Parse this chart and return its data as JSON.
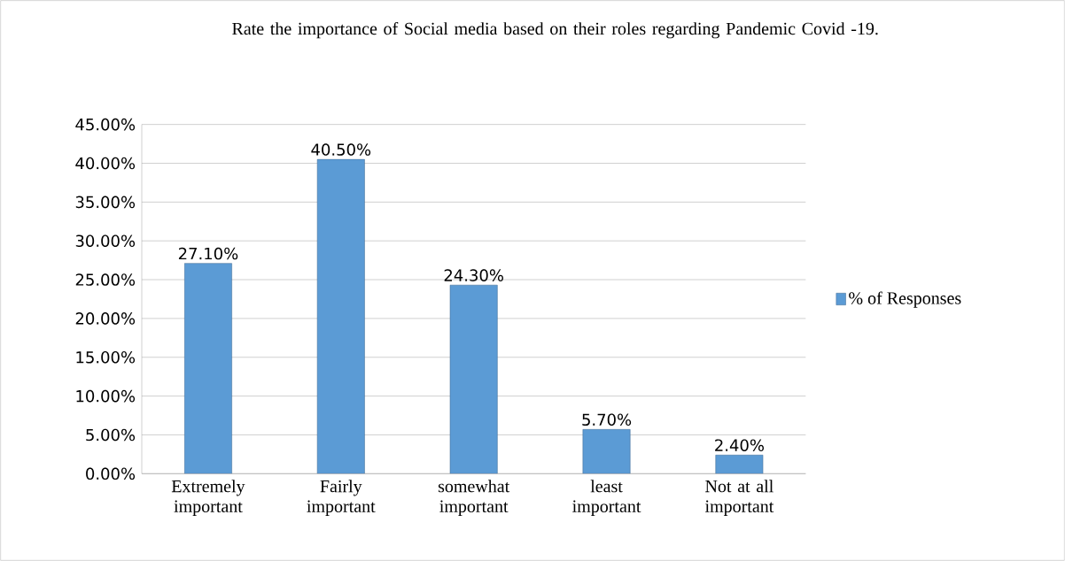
{
  "chart_data": {
    "type": "bar",
    "title": "Rate the importance of Social media based on their roles regarding Pandemic Covid -19.",
    "categories": [
      "Extremely important",
      "Fairly important",
      "somewhat important",
      "least important",
      "Not at all important"
    ],
    "series": [
      {
        "name": "% of Responses",
        "color": "#5b9bd5",
        "values": [
          27.1,
          40.5,
          24.3,
          5.7,
          2.4
        ],
        "value_labels": [
          "27.10%",
          "40.50%",
          "24.30%",
          "5.70%",
          "2.40%"
        ]
      }
    ],
    "ylim": [
      0,
      45
    ],
    "yticks": [
      {
        "value": 0,
        "label": "0.00%"
      },
      {
        "value": 5,
        "label": "5.00%"
      },
      {
        "value": 10,
        "label": "10.00%"
      },
      {
        "value": 15,
        "label": "15.00%"
      },
      {
        "value": 20,
        "label": "20.00%"
      },
      {
        "value": 25,
        "label": "25.00%"
      },
      {
        "value": 30,
        "label": "30.00%"
      },
      {
        "value": 35,
        "label": "35.00%"
      },
      {
        "value": 40,
        "label": "40.00%"
      },
      {
        "value": 45,
        "label": "45.00%"
      }
    ],
    "grid": "y",
    "legend": "right"
  }
}
